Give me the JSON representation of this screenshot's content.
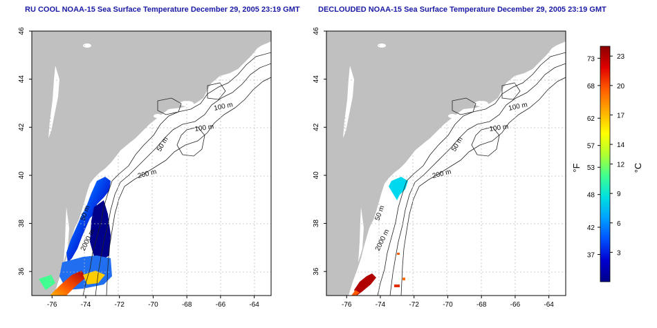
{
  "panels": [
    {
      "title": "RU COOL NOAA-15 Sea Surface Temperature December 29, 2005 23:19 GMT",
      "contour_labels": [
        "100 m",
        "100 m",
        "50 m",
        "200 m",
        "50 m",
        "2000 m"
      ]
    },
    {
      "title": "DECLOUDED NOAA-15 Sea Surface Temperature December 29, 2005 23:19 GMT",
      "contour_labels": [
        "100 m",
        "100 m",
        "50 m",
        "200 m",
        "50 m",
        "2000 m"
      ]
    }
  ],
  "chart_data": [
    {
      "type": "heatmap",
      "title": "RU COOL NOAA-15 Sea Surface Temperature December 29, 2005 23:19 GMT",
      "xticks": [
        "-76",
        "-74",
        "-72",
        "-70",
        "-68",
        "-66",
        "-64"
      ],
      "yticks": [
        "36",
        "38",
        "40",
        "42",
        "44",
        "46"
      ],
      "xlim": [
        -77.2,
        -63
      ],
      "ylim": [
        35,
        46
      ],
      "grid": true
    },
    {
      "type": "heatmap",
      "title": "DECLOUDED NOAA-15 Sea Surface Temperature December 29, 2005 23:19 GMT",
      "xticks": [
        "-76",
        "-74",
        "-72",
        "-70",
        "-68",
        "-66",
        "-64"
      ],
      "yticks": [
        "36",
        "38",
        "40",
        "42",
        "44",
        "46"
      ],
      "xlim": [
        -77.2,
        -63
      ],
      "ylim": [
        35,
        46
      ],
      "grid": true
    }
  ],
  "colorbar": {
    "fahrenheit_label": "°F",
    "celsius_label": "°C",
    "fahrenheit_ticks": [
      "73",
      "68",
      "62",
      "57",
      "53",
      "48",
      "42",
      "37"
    ],
    "celsius_ticks": [
      "23",
      "20",
      "17",
      "14",
      "12",
      "9",
      "6",
      "3"
    ],
    "range_c": [
      0,
      24
    ],
    "colors": [
      "#00008a",
      "#0000d0",
      "#0050ff",
      "#00a0ff",
      "#00e0e0",
      "#40ff90",
      "#b0ff30",
      "#ffff00",
      "#ffb000",
      "#ff5a00",
      "#e00000",
      "#8a0000"
    ]
  },
  "colors": {
    "land": "#c0c0c0",
    "ocean": "#ffffff",
    "grid": "#bdbdbd",
    "title": "#1a1aa6",
    "contour": "#222222"
  }
}
